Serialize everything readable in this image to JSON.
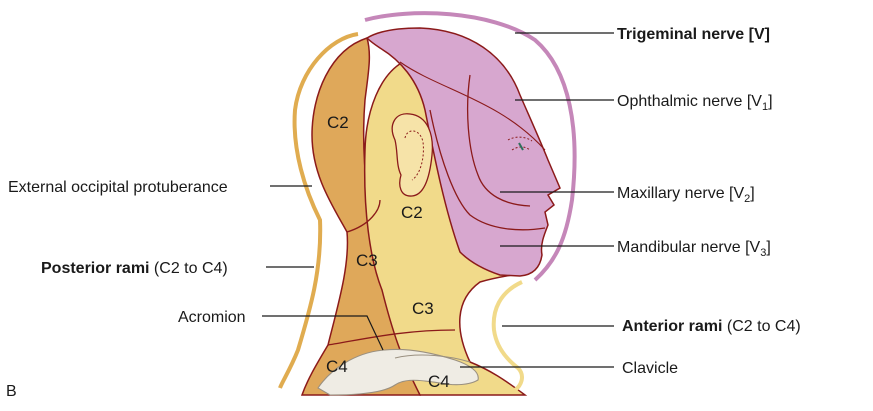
{
  "panel_letter": "B",
  "colors": {
    "trigeminal": "#d7a7cf",
    "trigeminal_outline": "#c587b9",
    "posterior_rami": "#dfa85a",
    "anterior_rami": "#f1da8a",
    "outline": "#8b1a1a",
    "bone": "#efece4"
  },
  "labels": {
    "trigeminal": "Trigeminal nerve [V]",
    "ophthalmic": {
      "text": "Ophthalmic nerve [V",
      "sub": "1",
      "close": "]"
    },
    "maxillary": {
      "text": "Maxillary nerve [V",
      "sub": "2",
      "close": "]"
    },
    "mandibular": {
      "text": "Mandibular nerve [V",
      "sub": "3",
      "close": "]"
    },
    "external_occipital": "External occipital protuberance",
    "posterior_rami": {
      "bold": "Posterior rami",
      "rest": " (C2 to C4)"
    },
    "acromion": "Acromion",
    "anterior_rami": {
      "bold": "Anterior rami",
      "rest": " (C2 to C4)"
    },
    "clavicle": "Clavicle"
  },
  "zones": {
    "c2_posterior": "C2",
    "c2_anterior": "C2",
    "c3_posterior": "C3",
    "c3_anterior": "C3",
    "c4_posterior": "C4",
    "c4_anterior": "C4"
  }
}
